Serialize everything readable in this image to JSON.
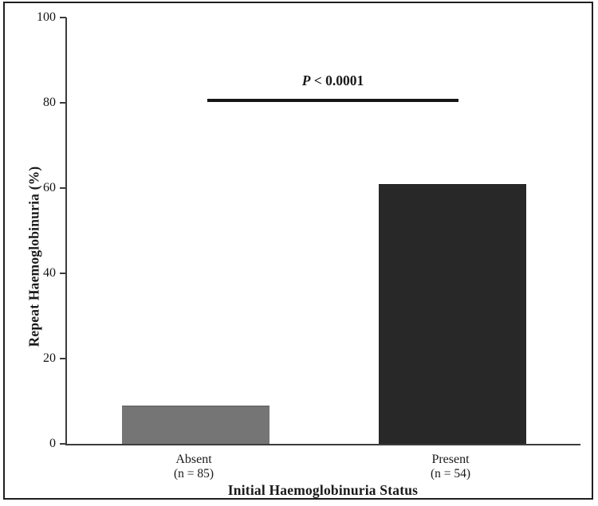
{
  "figure": {
    "background": "#ffffff",
    "border_color": "#1f1f1f",
    "axis_color": "#3c3c3c",
    "sig_line_color": "#161616",
    "text_color": "#1a1a1a"
  },
  "chart_data": {
    "type": "bar",
    "title": "",
    "xlabel": "Initial Haemoglobinuria Status",
    "ylabel": "Repeat Haemoglobinuria (%)",
    "categories": [
      "Absent",
      "Present"
    ],
    "category_sublabels": [
      "(n = 85)",
      "(n = 54)"
    ],
    "values": [
      9,
      61
    ],
    "bar_colors": [
      "#757575",
      "#282828"
    ],
    "ylim": [
      0,
      100
    ],
    "yticks": [
      0,
      20,
      40,
      60,
      80,
      100
    ],
    "grid": false,
    "legend": null,
    "annotation": {
      "p_italic": "P",
      "text": " < 0.0001",
      "full_text": "P < 0.0001",
      "y_percent": 81,
      "spans_categories": [
        "Absent",
        "Present"
      ]
    }
  }
}
